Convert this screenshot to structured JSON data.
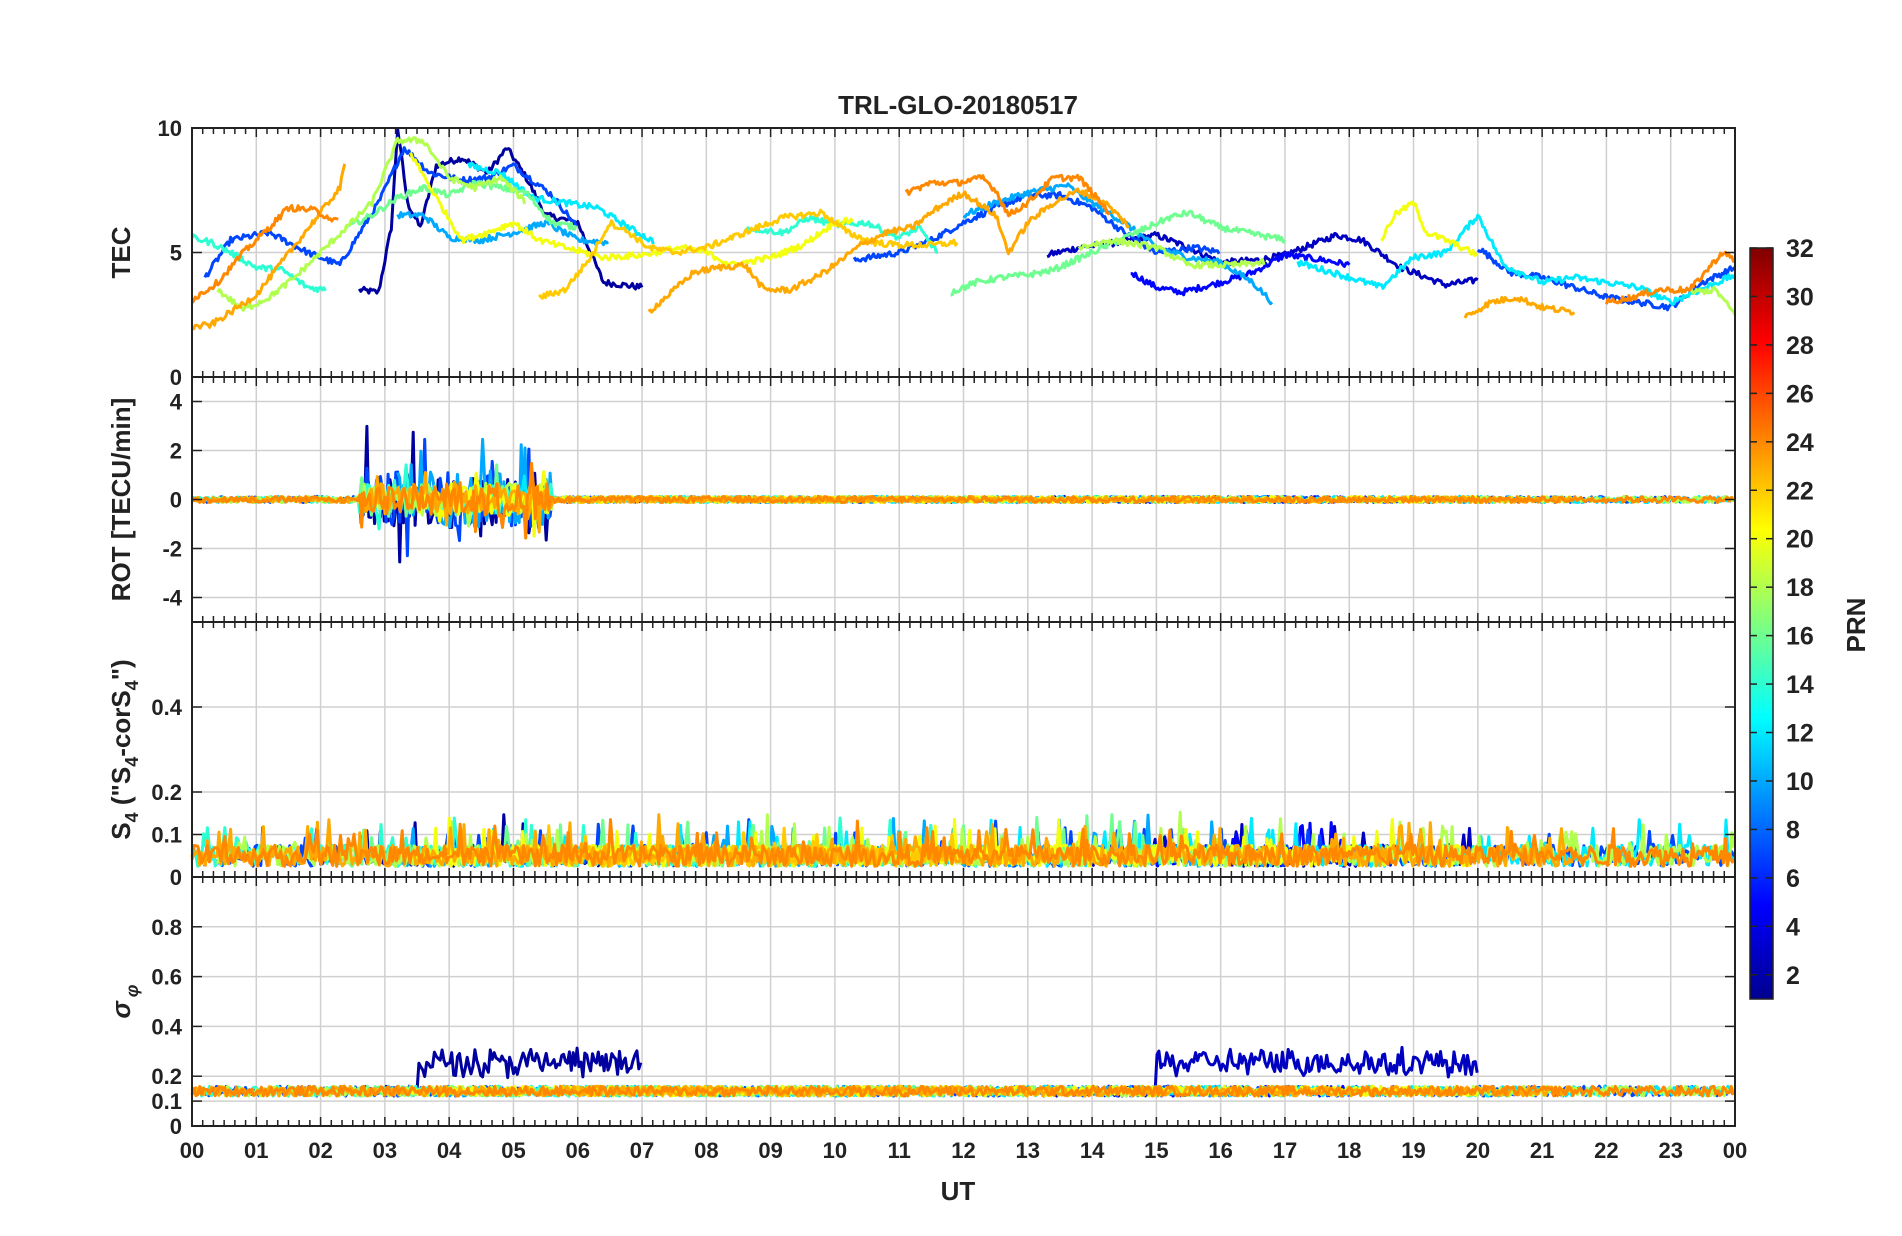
{
  "chart_data": {
    "type": "line",
    "title": "TRL-GLO-20180517",
    "xlabel": "UT",
    "x_ticks": [
      "00",
      "01",
      "02",
      "03",
      "04",
      "05",
      "06",
      "07",
      "08",
      "09",
      "10",
      "11",
      "12",
      "13",
      "14",
      "15",
      "16",
      "17",
      "18",
      "19",
      "20",
      "21",
      "22",
      "23",
      "00"
    ],
    "xlim": [
      0,
      24
    ],
    "panels": [
      {
        "id": "tec",
        "ylabel": "TEC",
        "ylim": [
          0,
          10
        ],
        "yticks": [
          0,
          5,
          10
        ]
      },
      {
        "id": "rot",
        "ylabel": "ROT [TECU/min]",
        "ylim": [
          -5,
          5
        ],
        "yticks": [
          -4,
          -2,
          0,
          2,
          4
        ]
      },
      {
        "id": "s4",
        "ylabel_main": "S",
        "ylabel_sub": "4",
        "ylabel_rest": " (\"S",
        "ylabel_sub2": "4",
        "ylabel_rest2": "-corS",
        "ylabel_sub3": "4",
        "ylabel_end": "\")",
        "ylim": [
          0,
          0.6
        ],
        "yticks": [
          0,
          0.1,
          0.2,
          0.4
        ]
      },
      {
        "id": "sigma",
        "ylabel_main": "σ",
        "ylabel_sub": "φ",
        "ylim": [
          0,
          1
        ],
        "yticks": [
          0,
          0.1,
          0.2,
          0.4,
          0.6,
          0.8
        ]
      }
    ],
    "colorbar": {
      "label": "PRN",
      "range": [
        1,
        32
      ],
      "ticks": [
        2,
        4,
        6,
        8,
        10,
        12,
        14,
        16,
        18,
        20,
        22,
        24,
        26,
        28,
        30,
        32
      ],
      "colormap": "jet"
    },
    "series": [
      {
        "prn": 2,
        "name": "PRN 2",
        "tec": [
          [
            2.6,
            3.5
          ],
          [
            2.9,
            3.4
          ],
          [
            3.1,
            6
          ],
          [
            3.2,
            10
          ],
          [
            3.35,
            7
          ],
          [
            3.55,
            6
          ],
          [
            3.8,
            8.5
          ],
          [
            4.2,
            8.8
          ],
          [
            4.6,
            8.2
          ],
          [
            4.9,
            9.2
          ],
          [
            5.2,
            8
          ],
          [
            5.5,
            6.5
          ],
          [
            6,
            6.2
          ],
          [
            6.4,
            3.8
          ],
          [
            7,
            3.6
          ]
        ]
      },
      {
        "prn": 3,
        "name": "PRN 3",
        "tec": [
          [
            13.3,
            4.9
          ],
          [
            13.8,
            5.2
          ],
          [
            14.4,
            5.4
          ],
          [
            15,
            5.7
          ],
          [
            15.5,
            5.2
          ],
          [
            16,
            4.6
          ],
          [
            16.6,
            4.7
          ],
          [
            17,
            4.9
          ],
          [
            17.8,
            5.7
          ],
          [
            18.2,
            5.5
          ],
          [
            18.8,
            4.4
          ],
          [
            19.5,
            3.7
          ],
          [
            20,
            3.9
          ]
        ]
      },
      {
        "prn": 5,
        "name": "PRN 5",
        "tec": [
          [
            14.6,
            4.2
          ],
          [
            15,
            3.6
          ],
          [
            15.4,
            3.4
          ],
          [
            16,
            3.8
          ],
          [
            16.5,
            4.2
          ],
          [
            17,
            4.9
          ],
          [
            17.6,
            4.7
          ],
          [
            18,
            4.5
          ]
        ]
      },
      {
        "prn": 7,
        "name": "PRN 7",
        "tec": [
          [
            0.2,
            4
          ],
          [
            0.6,
            5.5
          ],
          [
            1.2,
            5.8
          ],
          [
            1.8,
            5
          ],
          [
            2.3,
            4.5
          ],
          [
            2.9,
            7
          ],
          [
            3.3,
            9.2
          ],
          [
            3.7,
            8.2
          ],
          [
            4.2,
            7.9
          ],
          [
            4.6,
            8
          ],
          [
            5,
            8.5
          ],
          [
            5.6,
            7.3
          ],
          [
            6,
            6
          ],
          [
            10.3,
            4.7
          ],
          [
            11,
            5
          ],
          [
            11.5,
            5.5
          ],
          [
            12,
            6.2
          ],
          [
            12.5,
            6.8
          ],
          [
            13,
            7.3
          ],
          [
            13.5,
            7.3
          ],
          [
            14,
            6.8
          ],
          [
            14.5,
            5.8
          ],
          [
            15,
            5
          ],
          [
            15.6,
            5.2
          ],
          [
            16,
            5
          ],
          [
            20,
            5.2
          ],
          [
            20.5,
            4.2
          ],
          [
            21,
            4
          ],
          [
            22,
            3.2
          ],
          [
            23,
            2.8
          ],
          [
            23.5,
            3.8
          ],
          [
            24,
            4.4
          ]
        ]
      },
      {
        "prn": 10,
        "name": "PRN 10",
        "tec": [
          [
            3.2,
            6.5
          ],
          [
            3.6,
            6.5
          ],
          [
            4,
            5.6
          ],
          [
            4.5,
            5.5
          ],
          [
            5,
            5.8
          ],
          [
            5.5,
            6.2
          ],
          [
            6,
            5.5
          ],
          [
            6.5,
            5.4
          ],
          [
            12,
            6.5
          ],
          [
            12.5,
            7
          ],
          [
            13,
            7.4
          ],
          [
            13.6,
            7.7
          ],
          [
            14,
            7
          ],
          [
            14.5,
            6.2
          ],
          [
            15,
            5.2
          ],
          [
            15.5,
            4.8
          ],
          [
            16,
            4.6
          ],
          [
            16.5,
            3.8
          ],
          [
            16.8,
            3
          ]
        ]
      },
      {
        "prn": 12,
        "name": "PRN 12",
        "tec": [
          [
            4.3,
            8.5
          ],
          [
            4.8,
            8.2
          ],
          [
            5.3,
            7.2
          ],
          [
            5.8,
            7
          ],
          [
            6.3,
            6.8
          ],
          [
            6.8,
            6
          ],
          [
            7.2,
            5.4
          ],
          [
            17.2,
            4.6
          ],
          [
            18,
            4
          ],
          [
            18.5,
            3.6
          ],
          [
            19,
            4.8
          ],
          [
            19.5,
            5
          ],
          [
            20,
            6.5
          ],
          [
            20.4,
            4.5
          ],
          [
            21,
            3.8
          ],
          [
            21.5,
            4
          ],
          [
            22.5,
            3.6
          ],
          [
            23,
            3
          ],
          [
            24,
            4.1
          ]
        ]
      },
      {
        "prn": 14,
        "name": "PRN 14",
        "tec": [
          [
            0,
            5.6
          ],
          [
            0.3,
            5.4
          ],
          [
            0.6,
            5
          ],
          [
            1,
            4.4
          ],
          [
            1.4,
            4.3
          ],
          [
            1.8,
            3.6
          ],
          [
            2.1,
            3.5
          ],
          [
            8.6,
            6
          ],
          [
            9.2,
            5.8
          ],
          [
            9.6,
            6.4
          ],
          [
            10,
            6.1
          ],
          [
            10.5,
            6.2
          ],
          [
            11,
            5.6
          ],
          [
            11.3,
            6
          ],
          [
            11.6,
            5
          ]
        ]
      },
      {
        "prn": 16,
        "name": "PRN 16",
        "tec": [
          [
            2.4,
            6
          ],
          [
            2.8,
            6.5
          ],
          [
            3.2,
            7.2
          ],
          [
            3.6,
            7.6
          ],
          [
            4,
            7.3
          ],
          [
            4.4,
            7.8
          ],
          [
            4.8,
            7.6
          ],
          [
            5.2,
            7.4
          ],
          [
            5.6,
            6.2
          ],
          [
            6,
            6
          ],
          [
            11.8,
            3.4
          ],
          [
            12.2,
            3.8
          ],
          [
            12.6,
            4
          ],
          [
            13,
            4.1
          ],
          [
            13.4,
            4.3
          ],
          [
            15.2,
            6.4
          ],
          [
            15.5,
            6.6
          ],
          [
            16,
            6
          ],
          [
            17,
            5.5
          ]
        ]
      },
      {
        "prn": 18,
        "name": "PRN 18",
        "tec": [
          [
            0.4,
            3.5
          ],
          [
            0.8,
            2.7
          ],
          [
            1.2,
            3.2
          ],
          [
            1.6,
            4
          ],
          [
            2,
            5
          ],
          [
            2.4,
            6
          ],
          [
            2.8,
            7
          ],
          [
            3.2,
            9.5
          ],
          [
            3.6,
            9.5
          ],
          [
            4,
            8
          ],
          [
            4.4,
            7.6
          ],
          [
            4.8,
            8
          ],
          [
            5.2,
            7
          ],
          [
            13.8,
            5.2
          ],
          [
            14.3,
            5.5
          ],
          [
            15,
            5.2
          ],
          [
            15.5,
            4.5
          ],
          [
            16.2,
            4.5
          ],
          [
            16.7,
            4.6
          ],
          [
            23.3,
            3.4
          ],
          [
            23.7,
            3.5
          ],
          [
            24,
            2.5
          ]
        ]
      },
      {
        "prn": 20,
        "name": "PRN 20",
        "tec": [
          [
            3.4,
            9
          ],
          [
            3.8,
            7.2
          ],
          [
            4.2,
            5.5
          ],
          [
            4.6,
            5.8
          ],
          [
            5,
            6.2
          ],
          [
            5.4,
            5.5
          ],
          [
            5.8,
            5.2
          ],
          [
            6.4,
            4.8
          ],
          [
            7,
            4.9
          ],
          [
            7.6,
            5.2
          ],
          [
            8,
            5
          ],
          [
            8.4,
            4.5
          ],
          [
            9,
            4.8
          ],
          [
            9.5,
            5.3
          ],
          [
            10,
            6.2
          ],
          [
            10.3,
            6.3
          ],
          [
            18.5,
            5.5
          ],
          [
            18.7,
            6.5
          ],
          [
            19,
            7
          ],
          [
            19.2,
            5.8
          ],
          [
            19.5,
            5.5
          ],
          [
            20,
            4.9
          ]
        ]
      },
      {
        "prn": 22,
        "name": "PRN 22",
        "tec": [
          [
            5.4,
            3.2
          ],
          [
            5.8,
            3.5
          ],
          [
            6.2,
            4.8
          ],
          [
            6.5,
            6.2
          ],
          [
            6.8,
            5.8
          ],
          [
            7.1,
            5.2
          ],
          [
            7.5,
            5
          ],
          [
            8,
            5.2
          ],
          [
            8.6,
            5.8
          ],
          [
            9.2,
            6.4
          ],
          [
            9.8,
            6.6
          ],
          [
            10.2,
            5.8
          ],
          [
            10.6,
            5.4
          ],
          [
            11,
            5.3
          ],
          [
            11.5,
            5.3
          ],
          [
            11.9,
            5.4
          ]
        ]
      },
      {
        "prn": 23,
        "name": "PRN 23",
        "tec": [
          [
            0,
            2
          ],
          [
            0.3,
            2.1
          ],
          [
            0.6,
            2.6
          ],
          [
            1,
            3.3
          ],
          [
            2.3,
            7.6
          ],
          [
            2.4,
            8.8
          ],
          [
            7.1,
            2.6
          ],
          [
            7.5,
            3.5
          ],
          [
            7.8,
            4.2
          ],
          [
            8.2,
            4.4
          ],
          [
            8.6,
            4.5
          ],
          [
            8.9,
            3.5
          ],
          [
            9.3,
            3.5
          ],
          [
            9.7,
            4
          ],
          [
            10,
            4.5
          ],
          [
            10.4,
            5.3
          ],
          [
            10.8,
            5.8
          ],
          [
            11.2,
            6
          ],
          [
            11.6,
            6.8
          ],
          [
            12,
            7.4
          ],
          [
            12.5,
            6.5
          ],
          [
            12.7,
            5
          ],
          [
            13,
            6.2
          ],
          [
            13.4,
            7
          ],
          [
            13.8,
            7.5
          ],
          [
            14.2,
            7
          ],
          [
            14.6,
            6
          ],
          [
            19.8,
            2.4
          ],
          [
            20.2,
            3
          ],
          [
            20.6,
            3.2
          ],
          [
            21,
            2.8
          ],
          [
            21.5,
            2.6
          ]
        ]
      },
      {
        "prn": 24,
        "name": "PRN 24",
        "tec": [
          [
            0,
            3.1
          ],
          [
            0.4,
            3.8
          ],
          [
            0.8,
            5
          ],
          [
            1.2,
            6
          ],
          [
            1.5,
            6.8
          ],
          [
            1.9,
            6.7
          ],
          [
            2.3,
            6.2
          ],
          [
            11.1,
            7.4
          ],
          [
            11.5,
            7.8
          ],
          [
            11.9,
            7.8
          ],
          [
            12.3,
            8
          ],
          [
            12.5,
            7.5
          ],
          [
            12.7,
            6.5
          ],
          [
            13,
            7
          ],
          [
            13.4,
            8
          ],
          [
            13.8,
            8
          ],
          [
            14.3,
            6.5
          ],
          [
            22,
            3
          ],
          [
            22.4,
            3.2
          ],
          [
            22.8,
            3.5
          ],
          [
            23.3,
            3.5
          ],
          [
            23.6,
            4.4
          ],
          [
            23.8,
            5
          ],
          [
            24,
            4.7
          ]
        ]
      }
    ]
  }
}
